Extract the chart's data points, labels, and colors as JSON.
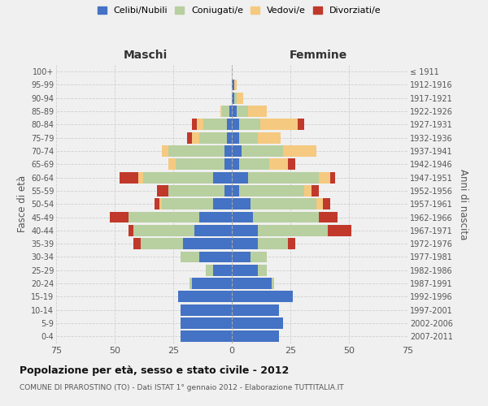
{
  "age_groups": [
    "0-4",
    "5-9",
    "10-14",
    "15-19",
    "20-24",
    "25-29",
    "30-34",
    "35-39",
    "40-44",
    "45-49",
    "50-54",
    "55-59",
    "60-64",
    "65-69",
    "70-74",
    "75-79",
    "80-84",
    "85-89",
    "90-94",
    "95-99",
    "100+"
  ],
  "birth_years": [
    "2007-2011",
    "2002-2006",
    "1997-2001",
    "1992-1996",
    "1987-1991",
    "1982-1986",
    "1977-1981",
    "1972-1976",
    "1967-1971",
    "1962-1966",
    "1957-1961",
    "1952-1956",
    "1947-1951",
    "1942-1946",
    "1937-1941",
    "1932-1936",
    "1927-1931",
    "1922-1926",
    "1917-1921",
    "1912-1916",
    "≤ 1911"
  ],
  "males": {
    "celibe": [
      22,
      22,
      22,
      23,
      17,
      8,
      14,
      21,
      16,
      14,
      8,
      3,
      8,
      3,
      3,
      2,
      2,
      1,
      0,
      0,
      0
    ],
    "coniugato": [
      0,
      0,
      0,
      0,
      1,
      3,
      8,
      18,
      26,
      30,
      22,
      24,
      30,
      21,
      24,
      12,
      10,
      3,
      0,
      0,
      0
    ],
    "vedovo": [
      0,
      0,
      0,
      0,
      0,
      0,
      0,
      0,
      0,
      0,
      1,
      0,
      2,
      3,
      3,
      3,
      3,
      1,
      0,
      0,
      0
    ],
    "divorziato": [
      0,
      0,
      0,
      0,
      0,
      0,
      0,
      3,
      2,
      8,
      2,
      5,
      8,
      0,
      0,
      2,
      2,
      0,
      0,
      0,
      0
    ]
  },
  "females": {
    "nubile": [
      20,
      22,
      20,
      26,
      17,
      11,
      8,
      11,
      11,
      9,
      8,
      3,
      7,
      3,
      4,
      3,
      3,
      2,
      1,
      1,
      0
    ],
    "coniugata": [
      0,
      0,
      0,
      0,
      1,
      4,
      7,
      13,
      30,
      28,
      28,
      28,
      30,
      13,
      18,
      8,
      9,
      5,
      1,
      0,
      0
    ],
    "vedova": [
      0,
      0,
      0,
      0,
      0,
      0,
      0,
      0,
      0,
      0,
      3,
      3,
      5,
      8,
      14,
      10,
      16,
      8,
      3,
      1,
      0
    ],
    "divorziata": [
      0,
      0,
      0,
      0,
      0,
      0,
      0,
      3,
      10,
      8,
      3,
      3,
      2,
      3,
      0,
      0,
      3,
      0,
      0,
      0,
      0
    ]
  },
  "colors": {
    "celibe": "#4472c4",
    "coniugato": "#b8cfa0",
    "vedovo": "#f5c97f",
    "divorziato": "#c0392b"
  },
  "title": "Popolazione per età, sesso e stato civile - 2012",
  "subtitle": "COMUNE DI PRAROSTINO (TO) - Dati ISTAT 1° gennaio 2012 - Elaborazione TUTTITALIA.IT",
  "xlabel_left": "Maschi",
  "xlabel_right": "Femmine",
  "ylabel_left": "Fasce di età",
  "ylabel_right": "Anni di nascita",
  "xlim": 75,
  "bg_color": "#f0f0f0",
  "grid_color": "#cccccc"
}
